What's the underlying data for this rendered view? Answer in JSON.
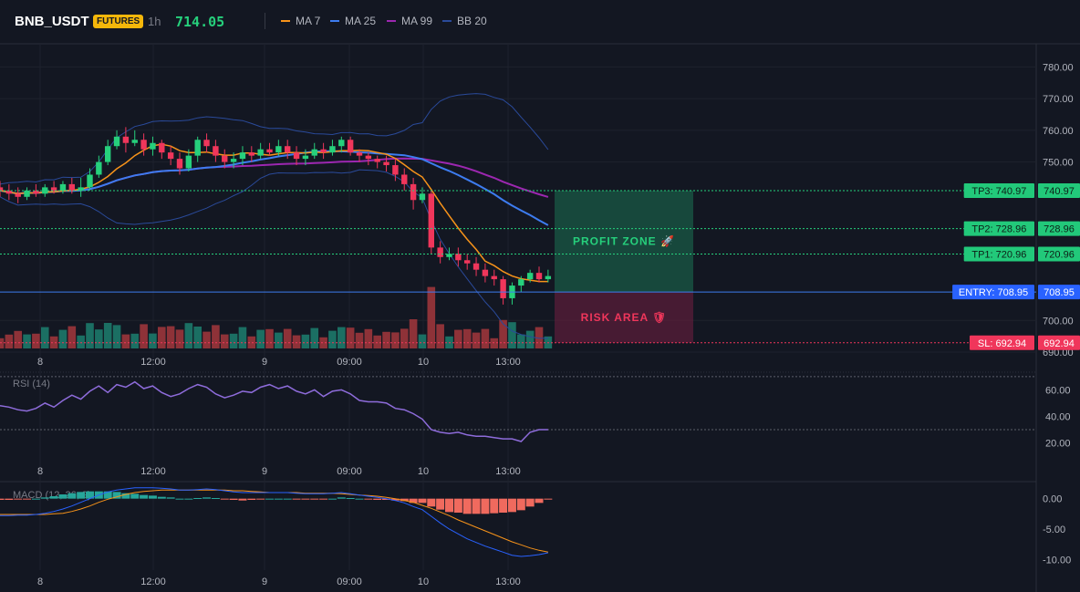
{
  "header": {
    "symbol": "BNB_USDT",
    "badge": "FUTURES",
    "timeframe": "1h",
    "last_price": "714.05",
    "legend": [
      {
        "label": "MA 7",
        "color": "#f7931a"
      },
      {
        "label": "MA 25",
        "color": "#3d7cf0"
      },
      {
        "label": "MA 99",
        "color": "#9c27b0"
      },
      {
        "label": "BB 20",
        "color": "#2a4a9a"
      }
    ]
  },
  "colors": {
    "up": "#26d07c",
    "down": "#f0365b",
    "bg": "#131722",
    "grid": "#1e222d",
    "vol_up": "#1b6f63",
    "vol_down": "#8e3238"
  },
  "chart_data": [
    {
      "type": "candlestick",
      "ylim": [
        690,
        785
      ],
      "y_ticks": [
        "780.00",
        "770.00",
        "760.00",
        "750.00",
        "700.00",
        "690.00"
      ],
      "x_ticks": [
        "8",
        "12:00",
        "9",
        "09:00",
        "10",
        "13:00"
      ],
      "candles": [
        [
          742,
          741,
          744,
          739
        ],
        [
          741,
          740,
          743,
          738
        ],
        [
          740,
          739,
          742,
          737
        ],
        [
          739,
          741,
          742,
          738
        ],
        [
          741,
          740,
          743,
          739
        ],
        [
          740,
          742,
          743,
          739
        ],
        [
          742,
          741,
          744,
          740
        ],
        [
          741,
          743,
          744,
          740
        ],
        [
          743,
          741,
          745,
          740
        ],
        [
          741,
          742,
          745,
          739
        ],
        [
          742,
          746,
          748,
          741
        ],
        [
          746,
          750,
          752,
          745
        ],
        [
          750,
          755,
          757,
          749
        ],
        [
          755,
          758,
          760,
          754
        ],
        [
          758,
          756,
          761,
          753
        ],
        [
          756,
          757,
          760,
          755
        ],
        [
          757,
          754,
          759,
          752
        ],
        [
          754,
          756,
          758,
          752
        ],
        [
          756,
          753,
          757,
          751
        ],
        [
          753,
          751,
          755,
          749
        ],
        [
          751,
          748,
          753,
          746
        ],
        [
          748,
          752,
          754,
          747
        ],
        [
          752,
          757,
          758,
          750
        ],
        [
          757,
          755,
          759,
          753
        ],
        [
          755,
          752,
          757,
          750
        ],
        [
          752,
          750,
          754,
          748
        ],
        [
          750,
          751,
          753,
          748
        ],
        [
          751,
          753,
          755,
          749
        ],
        [
          753,
          752,
          755,
          750
        ],
        [
          752,
          754,
          756,
          751
        ],
        [
          754,
          753,
          756,
          752
        ],
        [
          753,
          755,
          757,
          752
        ],
        [
          755,
          753,
          757,
          751
        ],
        [
          753,
          751,
          755,
          749
        ],
        [
          751,
          752,
          754,
          749
        ],
        [
          752,
          754,
          756,
          751
        ],
        [
          754,
          753,
          756,
          751
        ],
        [
          753,
          755,
          757,
          752
        ],
        [
          755,
          757,
          758,
          753
        ],
        [
          757,
          753,
          758,
          752
        ],
        [
          753,
          752,
          754,
          750
        ],
        [
          752,
          751,
          753,
          749
        ],
        [
          751,
          750,
          752,
          748
        ],
        [
          750,
          749,
          752,
          747
        ],
        [
          749,
          746,
          751,
          744
        ],
        [
          746,
          743,
          748,
          741
        ],
        [
          743,
          738,
          745,
          735
        ],
        [
          738,
          740,
          742,
          737
        ],
        [
          740,
          723,
          741,
          721
        ],
        [
          723,
          720,
          725,
          718
        ],
        [
          720,
          721,
          723,
          719
        ],
        [
          721,
          719,
          723,
          717
        ],
        [
          719,
          718,
          721,
          716
        ],
        [
          718,
          716,
          720,
          714
        ],
        [
          716,
          714,
          718,
          712
        ],
        [
          714,
          713,
          716,
          711
        ],
        [
          713,
          707,
          714,
          705
        ],
        [
          707,
          711,
          712,
          705
        ],
        [
          711,
          713,
          714,
          709
        ],
        [
          713,
          715,
          716,
          712
        ],
        [
          715,
          713,
          717,
          712
        ],
        [
          713,
          714,
          716,
          712
        ]
      ],
      "tp": [
        {
          "label": "TP3: 740.97",
          "value": "740.97",
          "price": 740.97
        },
        {
          "label": "TP2: 728.96",
          "value": "728.96",
          "price": 728.96
        },
        {
          "label": "TP1: 720.96",
          "value": "720.96",
          "price": 720.96
        }
      ],
      "entry": {
        "label": "ENTRY: 708.95",
        "value": "708.95",
        "price": 708.95
      },
      "sl": {
        "label": "SL: 692.94",
        "value": "692.94",
        "price": 692.94
      },
      "profit_zone_label": "PROFIT ZONE 🚀",
      "risk_area_label": "RISK AREA 🛡"
    },
    {
      "type": "line",
      "title": "RSI (14)",
      "ylim": [
        10,
        72
      ],
      "y_ticks": [
        "60.00",
        "40.00",
        "20.00"
      ],
      "guide_levels": [
        70,
        30
      ],
      "values": [
        48,
        47,
        45,
        44,
        46,
        50,
        47,
        52,
        56,
        53,
        59,
        63,
        58,
        64,
        62,
        66,
        61,
        63,
        58,
        55,
        57,
        61,
        64,
        62,
        57,
        54,
        56,
        59,
        58,
        62,
        64,
        61,
        63,
        59,
        57,
        60,
        55,
        59,
        60,
        57,
        52,
        51,
        51,
        50,
        46,
        45,
        42,
        38,
        30,
        28,
        27,
        28,
        26,
        25,
        25,
        24,
        23,
        23,
        21,
        28,
        30,
        30
      ]
    },
    {
      "type": "line",
      "title": "MACD (12, 26, 9)",
      "ylim": [
        -11,
        2.5
      ],
      "y_ticks": [
        "0.00",
        "-5.00",
        "-10.00"
      ],
      "macd": [
        -2.8,
        -2.8,
        -2.7,
        -2.7,
        -2.6,
        -2.4,
        -2.1,
        -1.7,
        -1.2,
        -0.6,
        0.0,
        0.6,
        1.1,
        1.4,
        1.6,
        1.8,
        1.8,
        1.8,
        1.7,
        1.6,
        1.4,
        1.4,
        1.5,
        1.6,
        1.5,
        1.3,
        1.1,
        1.0,
        1.0,
        1.0,
        1.0,
        1.0,
        1.0,
        0.9,
        0.8,
        0.8,
        0.8,
        0.9,
        1.0,
        0.8,
        0.6,
        0.4,
        0.2,
        0.0,
        -0.3,
        -0.7,
        -1.3,
        -1.8,
        -2.9,
        -4.0,
        -5.0,
        -5.8,
        -6.6,
        -7.2,
        -7.8,
        -8.3,
        -8.8,
        -9.3,
        -9.5,
        -9.4,
        -9.2,
        -8.9
      ],
      "signal": [
        -2.6,
        -2.6,
        -2.6,
        -2.6,
        -2.6,
        -2.6,
        -2.5,
        -2.4,
        -2.1,
        -1.7,
        -1.2,
        -0.6,
        -0.1,
        0.3,
        0.7,
        1.0,
        1.2,
        1.3,
        1.4,
        1.4,
        1.4,
        1.4,
        1.4,
        1.4,
        1.4,
        1.4,
        1.3,
        1.3,
        1.2,
        1.1,
        1.0,
        1.0,
        1.0,
        1.0,
        0.9,
        0.9,
        0.9,
        0.9,
        0.8,
        0.7,
        0.6,
        0.5,
        0.4,
        0.2,
        0.0,
        -0.3,
        -0.6,
        -1.1,
        -1.6,
        -2.2,
        -2.8,
        -3.5,
        -4.1,
        -4.7,
        -5.3,
        -5.9,
        -6.5,
        -7.1,
        -7.6,
        -8.1,
        -8.5,
        -8.8
      ],
      "histogram": [
        -0.2,
        -0.2,
        -0.1,
        -0.1,
        0.0,
        0.2,
        0.4,
        0.7,
        0.9,
        1.1,
        1.2,
        1.2,
        1.2,
        1.1,
        0.9,
        0.8,
        0.6,
        0.5,
        0.3,
        0.2,
        0.0,
        0.0,
        0.1,
        0.2,
        0.1,
        -0.1,
        -0.2,
        -0.3,
        -0.2,
        -0.1,
        0.0,
        0.0,
        0.0,
        -0.1,
        -0.1,
        -0.1,
        -0.1,
        0.0,
        0.2,
        0.1,
        0.0,
        -0.1,
        -0.2,
        -0.2,
        -0.3,
        -0.4,
        -0.7,
        -0.7,
        -1.3,
        -1.8,
        -2.2,
        -2.3,
        -2.5,
        -2.5,
        -2.5,
        -2.4,
        -2.3,
        -2.2,
        -1.9,
        -1.3,
        -0.7,
        -0.1
      ]
    }
  ]
}
